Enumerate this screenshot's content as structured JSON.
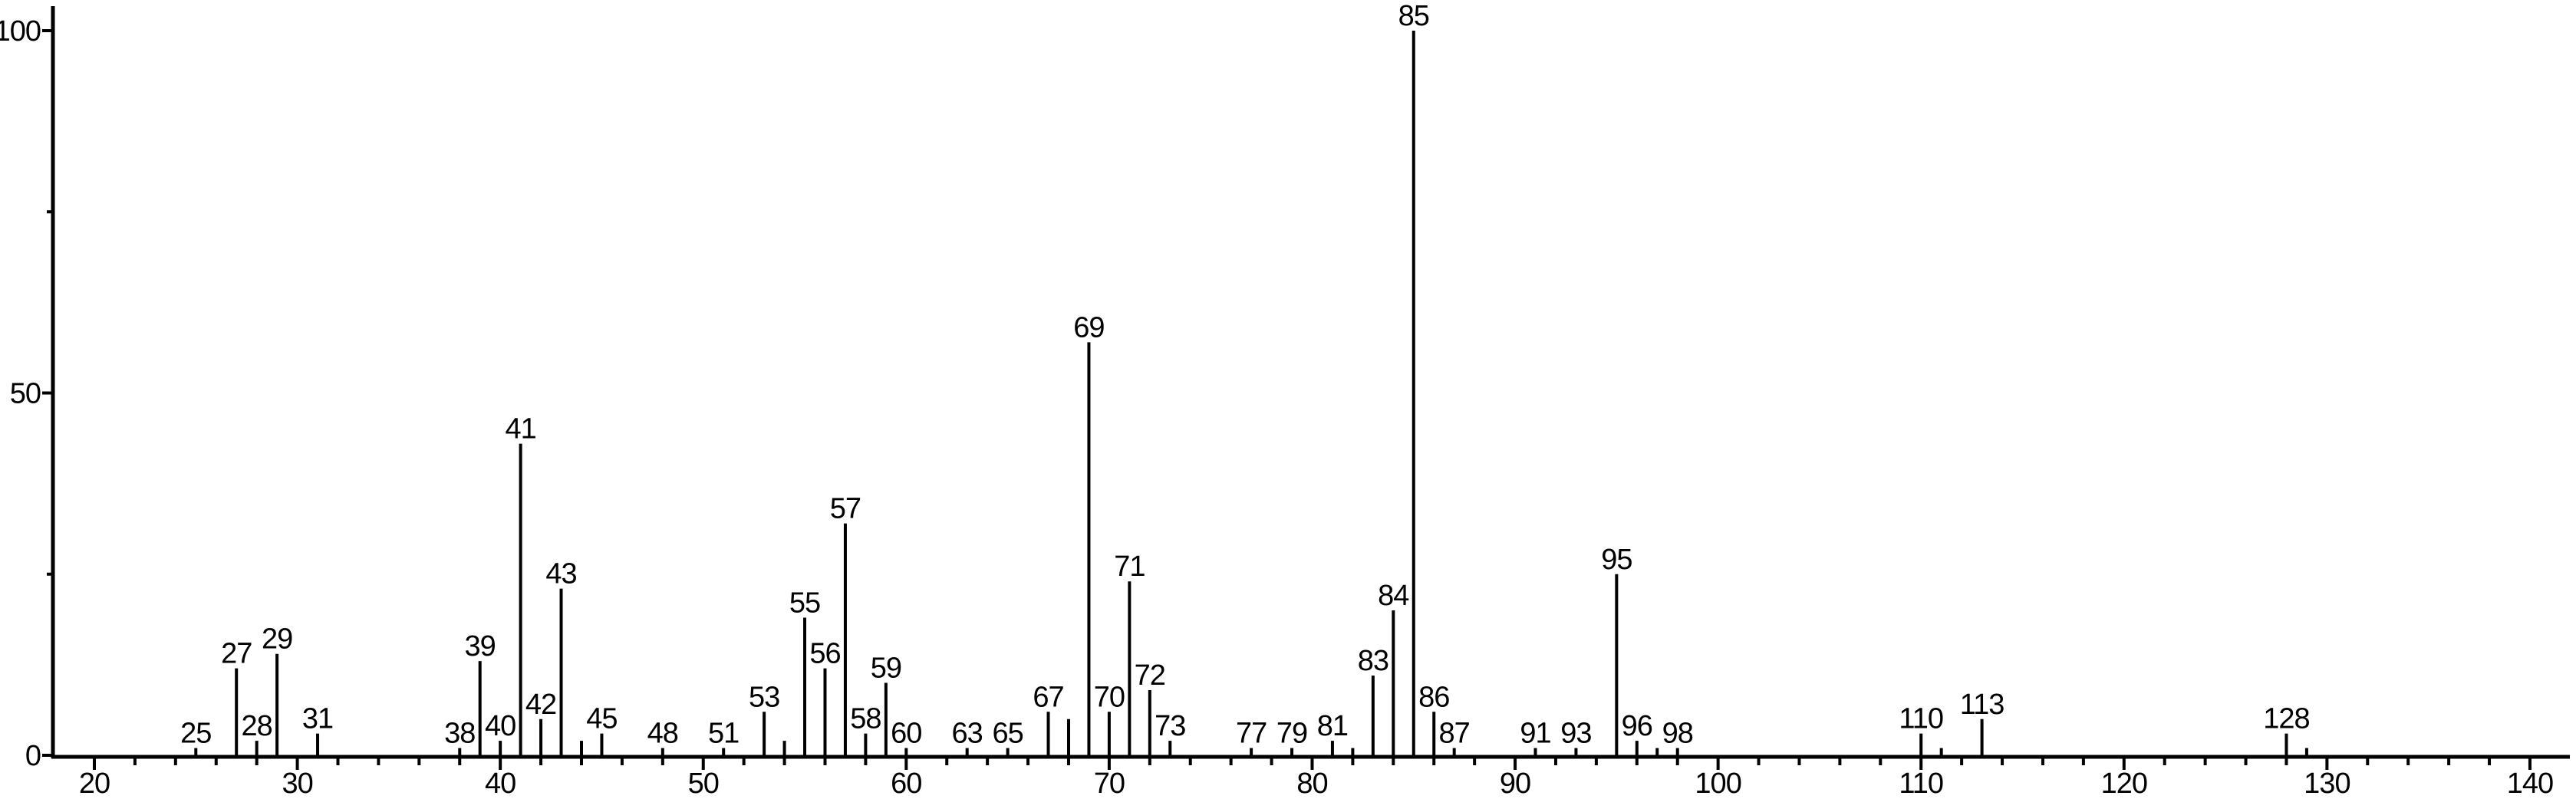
{
  "chart_data": {
    "type": "bar",
    "variant": "mass-spectrum",
    "title": "",
    "xlabel": "",
    "ylabel": "",
    "grid": false,
    "legend_position": "none",
    "background_color": "#ffffff",
    "axis_color": "#000000",
    "bar_color": "#000000",
    "xlim": [
      18,
      142
    ],
    "ylim": [
      0,
      100
    ],
    "x_major_ticks": [
      20,
      30,
      40,
      50,
      60,
      70,
      80,
      90,
      100,
      110,
      120,
      130,
      140
    ],
    "x_major_tick_labels": [
      "20",
      "30",
      "40",
      "50",
      "60",
      "70",
      "80",
      "90",
      "100",
      "110",
      "120",
      "130",
      "140"
    ],
    "x_minor_tick_step": 2,
    "x_minor_tick_range": [
      22,
      138
    ],
    "y_major_ticks": [
      0,
      50,
      100
    ],
    "y_major_tick_labels": [
      "0",
      "50",
      "100"
    ],
    "y_minor_ticks": [
      25,
      75
    ],
    "peaks": [
      {
        "mz": 25,
        "intensity": 1,
        "labeled": true
      },
      {
        "mz": 27,
        "intensity": 12,
        "labeled": true
      },
      {
        "mz": 28,
        "intensity": 2,
        "labeled": true
      },
      {
        "mz": 29,
        "intensity": 14,
        "labeled": true
      },
      {
        "mz": 31,
        "intensity": 3,
        "labeled": true
      },
      {
        "mz": 38,
        "intensity": 1,
        "labeled": true
      },
      {
        "mz": 39,
        "intensity": 13,
        "labeled": true
      },
      {
        "mz": 40,
        "intensity": 2,
        "labeled": true
      },
      {
        "mz": 41,
        "intensity": 43,
        "labeled": true
      },
      {
        "mz": 42,
        "intensity": 5,
        "labeled": true
      },
      {
        "mz": 43,
        "intensity": 23,
        "labeled": true
      },
      {
        "mz": 44,
        "intensity": 2,
        "labeled": false
      },
      {
        "mz": 45,
        "intensity": 3,
        "labeled": true
      },
      {
        "mz": 48,
        "intensity": 1,
        "labeled": true
      },
      {
        "mz": 51,
        "intensity": 1,
        "labeled": true
      },
      {
        "mz": 53,
        "intensity": 6,
        "labeled": true
      },
      {
        "mz": 54,
        "intensity": 2,
        "labeled": false
      },
      {
        "mz": 55,
        "intensity": 19,
        "labeled": true
      },
      {
        "mz": 56,
        "intensity": 12,
        "labeled": true
      },
      {
        "mz": 57,
        "intensity": 32,
        "labeled": true
      },
      {
        "mz": 58,
        "intensity": 3,
        "labeled": true
      },
      {
        "mz": 59,
        "intensity": 10,
        "labeled": true
      },
      {
        "mz": 60,
        "intensity": 1,
        "labeled": true
      },
      {
        "mz": 63,
        "intensity": 1,
        "labeled": true
      },
      {
        "mz": 65,
        "intensity": 1,
        "labeled": true
      },
      {
        "mz": 67,
        "intensity": 6,
        "labeled": true
      },
      {
        "mz": 68,
        "intensity": 5,
        "labeled": false
      },
      {
        "mz": 69,
        "intensity": 57,
        "labeled": true
      },
      {
        "mz": 70,
        "intensity": 6,
        "labeled": true
      },
      {
        "mz": 71,
        "intensity": 24,
        "labeled": true
      },
      {
        "mz": 72,
        "intensity": 9,
        "labeled": true
      },
      {
        "mz": 73,
        "intensity": 2,
        "labeled": true
      },
      {
        "mz": 77,
        "intensity": 1,
        "labeled": true
      },
      {
        "mz": 79,
        "intensity": 1,
        "labeled": true
      },
      {
        "mz": 81,
        "intensity": 2,
        "labeled": true
      },
      {
        "mz": 82,
        "intensity": 1,
        "labeled": false
      },
      {
        "mz": 83,
        "intensity": 11,
        "labeled": true
      },
      {
        "mz": 84,
        "intensity": 20,
        "labeled": true
      },
      {
        "mz": 85,
        "intensity": 100,
        "labeled": true
      },
      {
        "mz": 86,
        "intensity": 6,
        "labeled": true
      },
      {
        "mz": 87,
        "intensity": 1,
        "labeled": true
      },
      {
        "mz": 91,
        "intensity": 1,
        "labeled": true
      },
      {
        "mz": 93,
        "intensity": 1,
        "labeled": true
      },
      {
        "mz": 95,
        "intensity": 25,
        "labeled": true
      },
      {
        "mz": 96,
        "intensity": 2,
        "labeled": true
      },
      {
        "mz": 97,
        "intensity": 1,
        "labeled": false
      },
      {
        "mz": 98,
        "intensity": 1,
        "labeled": true
      },
      {
        "mz": 110,
        "intensity": 3,
        "labeled": true
      },
      {
        "mz": 111,
        "intensity": 1,
        "labeled": false
      },
      {
        "mz": 113,
        "intensity": 5,
        "labeled": true
      },
      {
        "mz": 128,
        "intensity": 3,
        "labeled": true
      },
      {
        "mz": 129,
        "intensity": 1,
        "labeled": false
      }
    ]
  }
}
